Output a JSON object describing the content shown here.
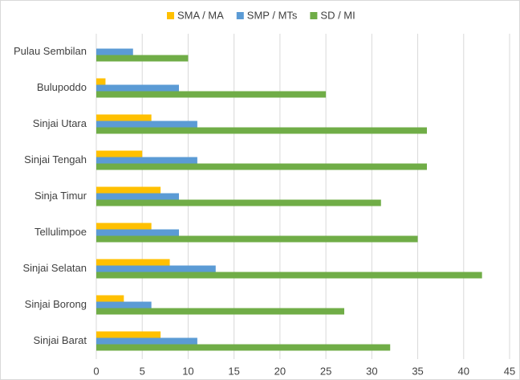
{
  "chart_data": {
    "type": "hbar",
    "categories": [
      "Pulau Sembilan",
      "Bulupoddo",
      "Sinjai Utara",
      "Sinjai Tengah",
      "Sinja Timur",
      "Tellulimpoe",
      "Sinjai Selatan",
      "Sinjai Borong",
      "Sinjai Barat"
    ],
    "series": [
      {
        "name": "SMA / MA",
        "color": "#ffc000",
        "values": [
          0,
          1,
          6,
          5,
          7,
          6,
          8,
          3,
          7
        ]
      },
      {
        "name": "SMP / MTs",
        "color": "#5b9bd5",
        "values": [
          4,
          9,
          11,
          11,
          9,
          9,
          13,
          6,
          11
        ]
      },
      {
        "name": "SD / MI",
        "color": "#70ad47",
        "values": [
          10,
          25,
          36,
          36,
          31,
          35,
          42,
          27,
          32
        ]
      }
    ],
    "xlim": [
      0,
      45
    ],
    "xticks": [
      0,
      5,
      10,
      15,
      20,
      25,
      30,
      35,
      40,
      45
    ],
    "grid": true,
    "legend": "top"
  }
}
